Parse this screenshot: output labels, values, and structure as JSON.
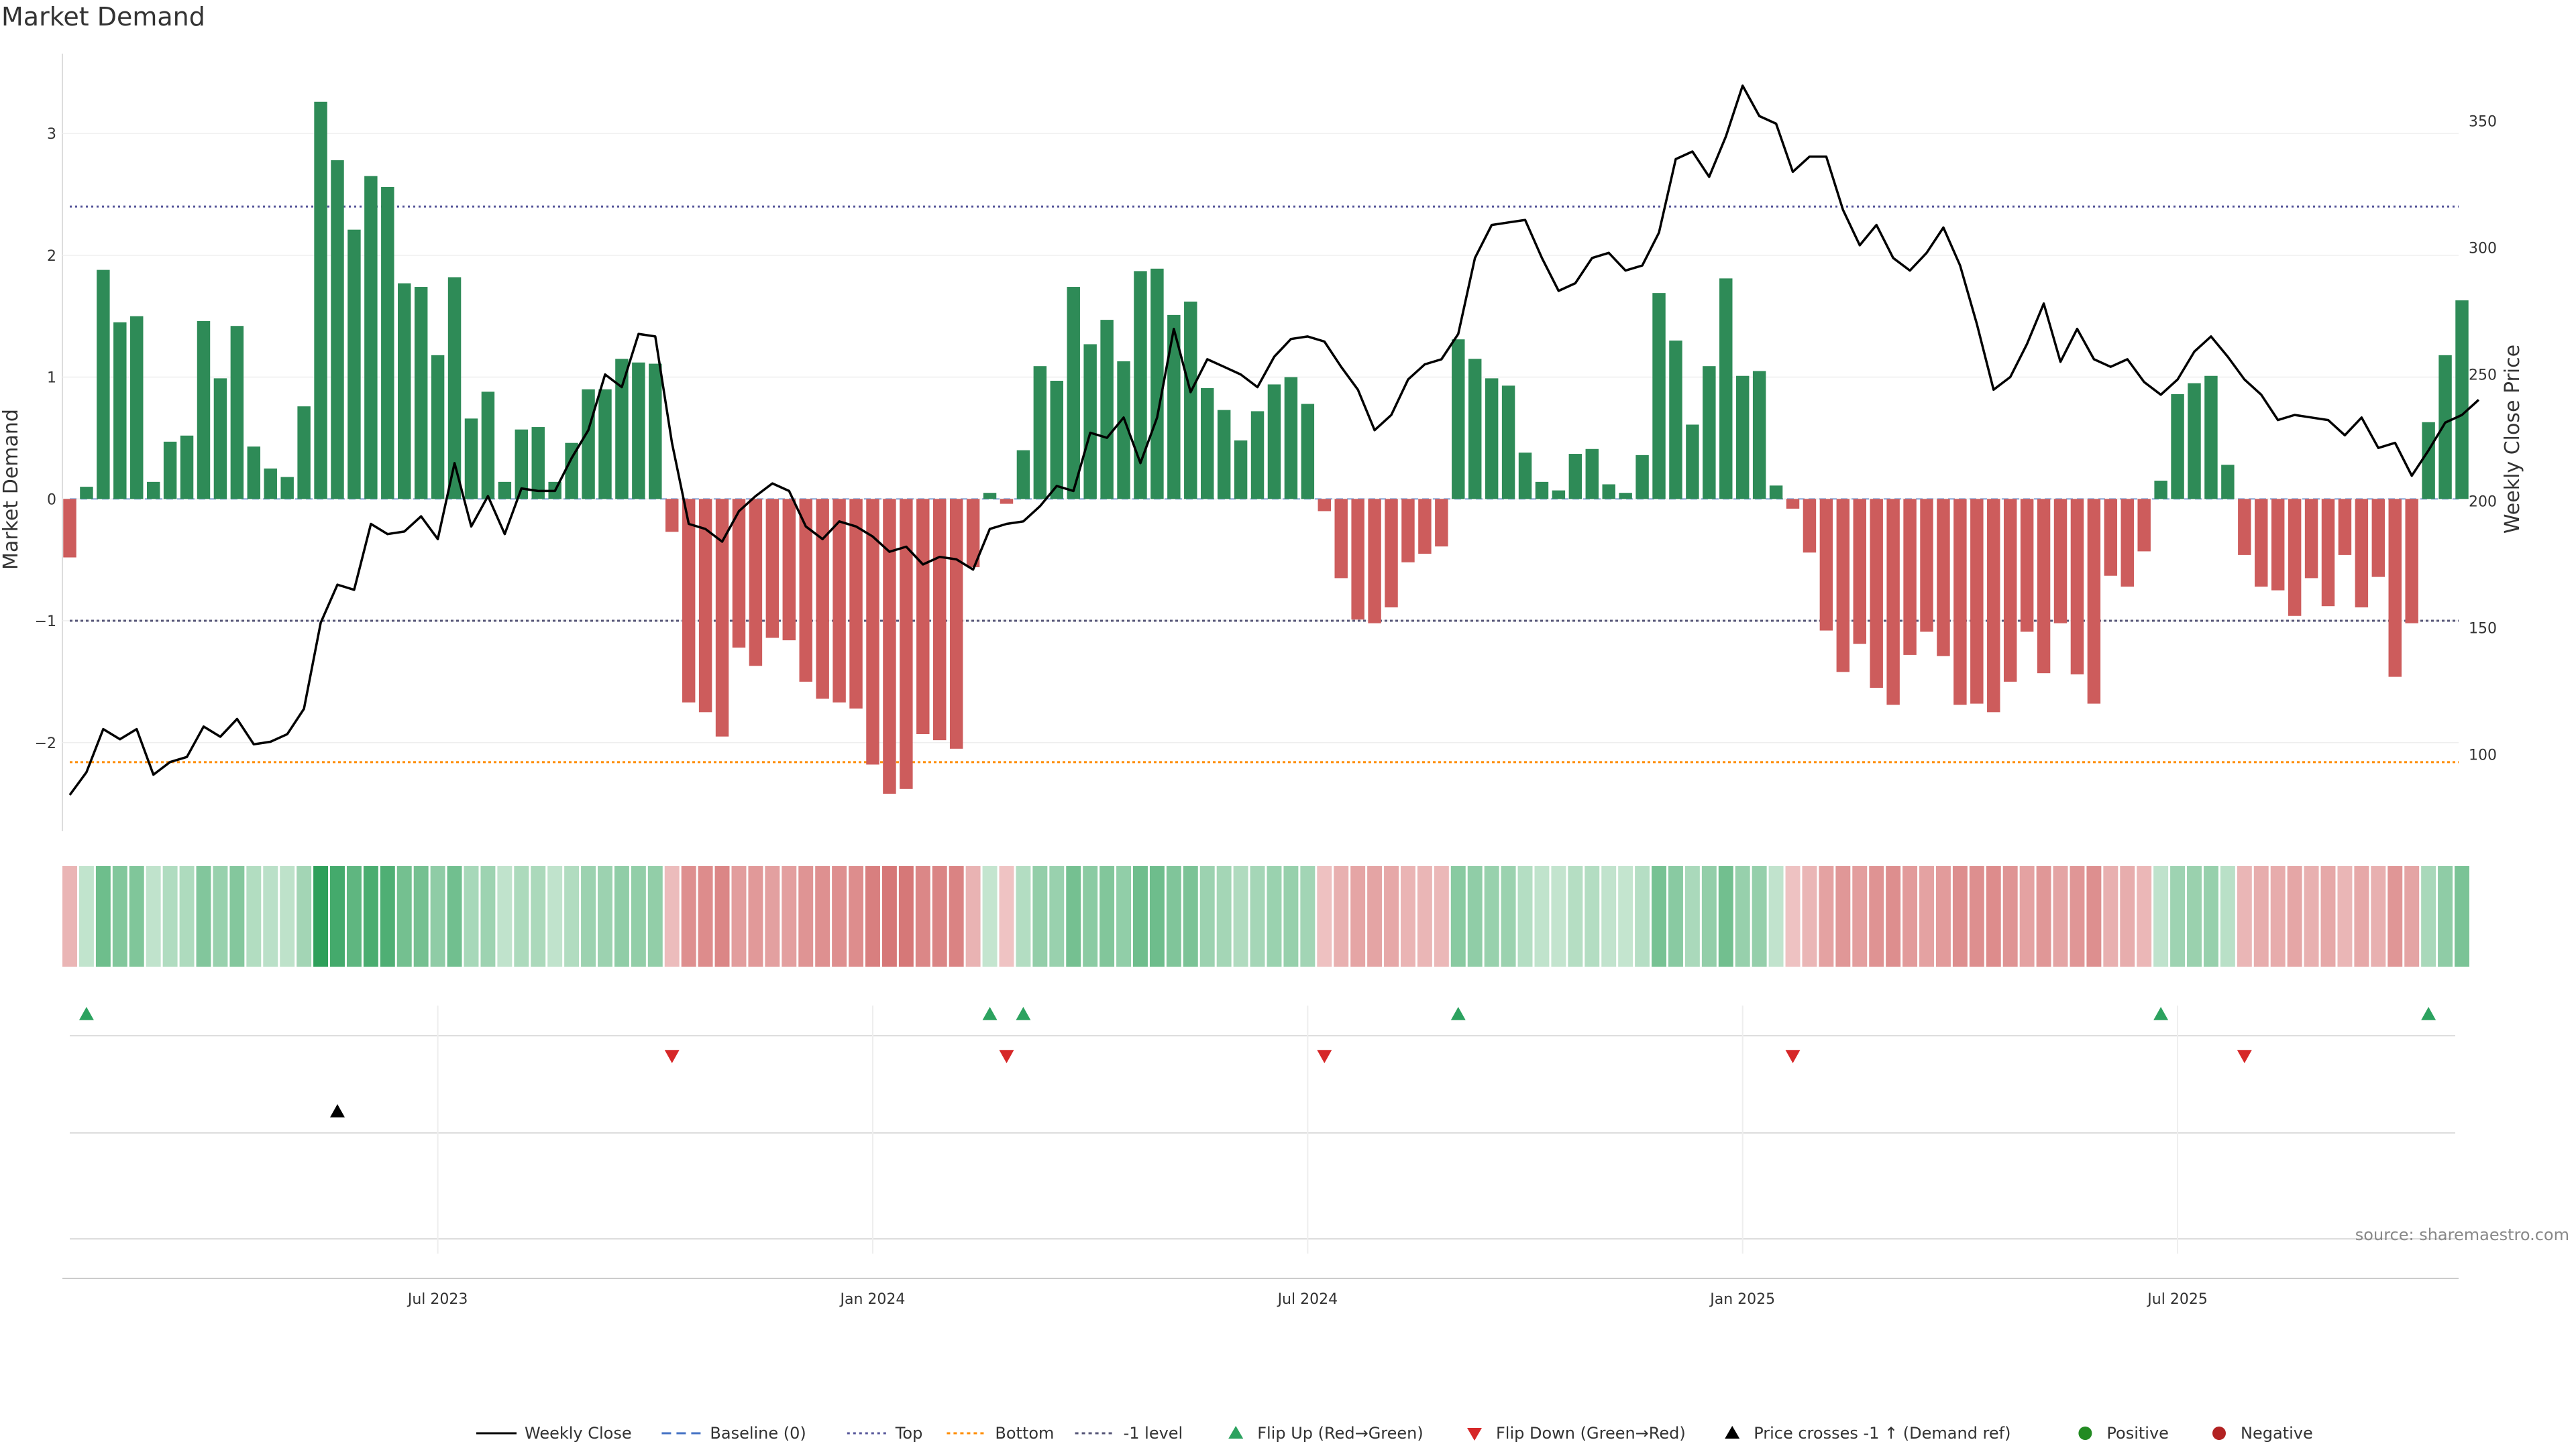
{
  "chart_data": {
    "type": "bar",
    "title": "Market Demand",
    "ylabel": "Market Demand",
    "y2label": "Weekly Close Price",
    "ylim": [
      -2.7,
      3.6
    ],
    "y2lim": [
      71,
      374
    ],
    "yticks": [
      -2,
      -1,
      0,
      1,
      2,
      3
    ],
    "yticklabels": [
      "−2",
      "−1",
      "0",
      "1",
      "2",
      "3"
    ],
    "y2ticks": [
      100,
      150,
      200,
      250,
      300,
      350
    ],
    "xticks": [
      {
        "index": 22,
        "label": "Jul 2023"
      },
      {
        "index": 48,
        "label": "Jan 2024"
      },
      {
        "index": 74,
        "label": "Jul 2024"
      },
      {
        "index": 100,
        "label": "Jan 2025"
      },
      {
        "index": 126,
        "label": "Jul 2025"
      }
    ],
    "levels": {
      "top": 2.4,
      "minus_one": -1.0,
      "bottom": -2.16
    },
    "demand": [
      -0.48,
      0.1,
      1.88,
      1.45,
      1.5,
      0.14,
      0.47,
      0.52,
      1.46,
      0.99,
      1.42,
      0.43,
      0.25,
      0.18,
      0.76,
      3.26,
      2.78,
      2.21,
      2.65,
      2.56,
      1.77,
      1.74,
      1.18,
      1.82,
      0.66,
      0.88,
      0.14,
      0.57,
      0.59,
      0.14,
      0.46,
      0.9,
      0.9,
      1.15,
      1.12,
      1.11,
      -0.27,
      -1.67,
      -1.75,
      -1.95,
      -1.22,
      -1.37,
      -1.14,
      -1.16,
      -1.5,
      -1.64,
      -1.67,
      -1.72,
      -2.18,
      -2.42,
      -2.38,
      -1.93,
      -1.98,
      -2.05,
      -0.56,
      0.05,
      -0.04,
      0.4,
      1.09,
      0.97,
      1.74,
      1.27,
      1.47,
      1.13,
      1.87,
      1.89,
      1.51,
      1.62,
      0.91,
      0.73,
      0.48,
      0.72,
      0.94,
      1.0,
      0.78,
      -0.1,
      -0.65,
      -0.99,
      -1.02,
      -0.89,
      -0.52,
      -0.45,
      -0.39,
      1.31,
      1.15,
      0.99,
      0.93,
      0.38,
      0.14,
      0.07,
      0.37,
      0.41,
      0.12,
      0.05,
      0.36,
      1.69,
      1.3,
      0.61,
      1.09,
      1.81,
      1.01,
      1.05,
      0.11,
      -0.08,
      -0.44,
      -1.08,
      -1.42,
      -1.19,
      -1.55,
      -1.69,
      -1.28,
      -1.09,
      -1.29,
      -1.69,
      -1.68,
      -1.75,
      -1.5,
      -1.09,
      -1.43,
      -1.02,
      -1.44,
      -1.68,
      -0.63,
      -0.72,
      -0.43,
      0.15,
      0.86,
      0.95,
      1.01,
      0.28,
      -0.46,
      -0.72,
      -0.75,
      -0.96,
      -0.65,
      -0.88,
      -0.46,
      -0.89,
      -0.64,
      -1.46,
      -1.02,
      0.63,
      1.18,
      1.63
    ],
    "close": [
      84,
      93,
      110,
      106,
      110,
      92,
      97,
      99,
      111,
      107,
      114,
      104,
      105,
      108,
      118,
      152,
      167,
      165,
      191,
      187,
      188,
      194,
      185,
      215,
      190,
      202,
      187,
      205,
      204,
      204,
      217,
      228,
      250,
      245,
      266,
      265,
      223,
      191,
      189,
      184,
      196,
      202,
      207,
      204,
      190,
      185,
      192,
      190,
      186,
      180,
      182,
      175,
      178,
      177,
      173,
      189,
      191,
      192,
      198,
      206,
      204,
      227,
      225,
      233,
      215,
      233,
      268,
      243,
      256,
      253,
      250,
      245,
      257,
      264,
      265,
      263,
      253,
      244,
      228,
      234,
      248,
      254,
      256,
      266,
      296,
      309,
      310,
      311,
      296,
      283,
      286,
      296,
      298,
      291,
      293,
      306,
      335,
      338,
      328,
      344,
      364,
      352,
      349,
      330,
      336,
      336,
      315,
      301,
      309,
      296,
      291,
      298,
      308,
      293,
      270,
      244,
      249,
      262,
      278,
      255,
      268,
      256,
      253,
      256,
      247,
      242,
      248,
      259,
      265,
      257,
      248,
      242,
      232,
      234,
      233,
      232,
      226,
      233,
      221,
      223,
      210,
      220,
      231,
      234,
      240
    ],
    "flip_up_indices": [
      1,
      55,
      57,
      83,
      125,
      141
    ],
    "flip_down_indices": [
      36,
      56,
      75,
      103,
      130
    ],
    "price_cross_indices": [
      16
    ],
    "legend": [
      "Weekly Close",
      "Baseline (0)",
      "Top",
      "Bottom",
      "-1 level",
      "Flip Up (Red→Green)",
      "Flip Down (Green→Red)",
      "Price crosses -1 ↑ (Demand ref)",
      "Positive",
      "Negative"
    ],
    "source": "source: sharemaestro.com"
  },
  "colors": {
    "positive": "#2e8b57",
    "negative": "#cd5c5c",
    "flip_up": "#2ca25f",
    "flip_down": "#d62728",
    "top_line": "#555599",
    "bottom_line": "#ff8c00",
    "minus_one_line": "#555577",
    "baseline": "#4472c4",
    "price_line": "#000000",
    "legend_positive_dot": "#228b22",
    "legend_negative_dot": "#b22222"
  }
}
